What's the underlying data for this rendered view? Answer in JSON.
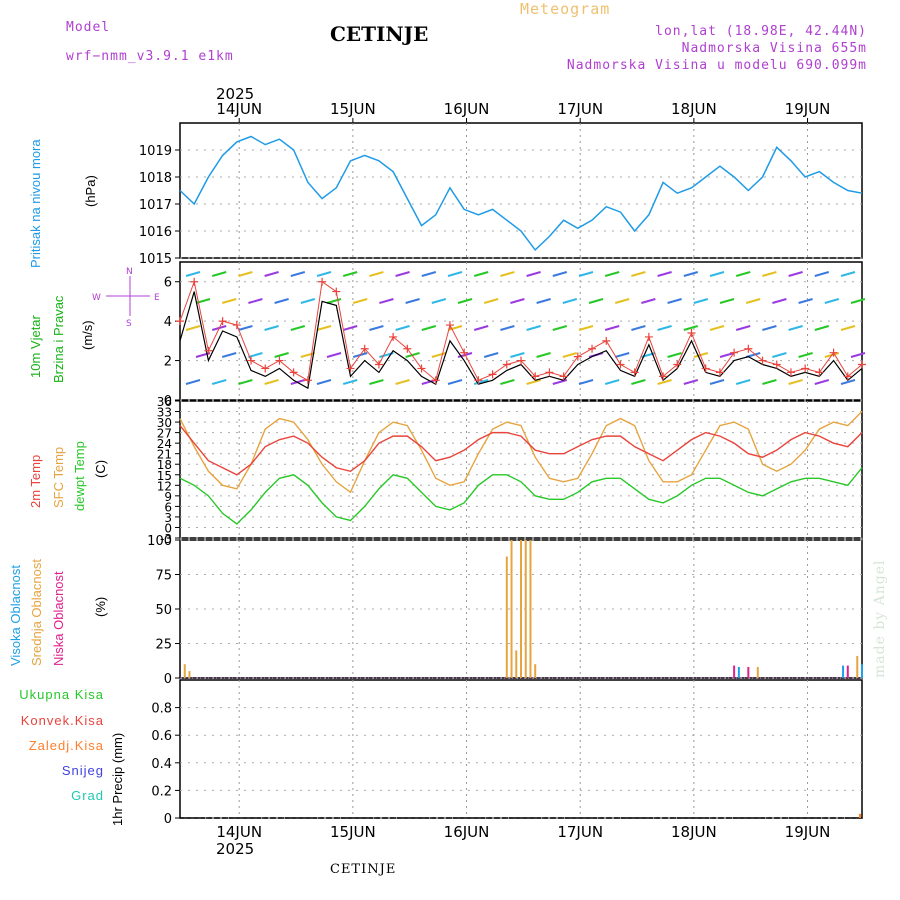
{
  "header": {
    "model_label": "Model",
    "model_name": "wrf−nmm_v3.9.1  e1km",
    "title": "CETINJE",
    "meteogram": "Meteogram",
    "lonlat": "lon,lat (18.98E, 42.44N)",
    "altitude": "Nadmorska Visina 655m",
    "model_altitude": "Nadmorska Visina u modelu 690.099m",
    "year_top": "2025",
    "year_bottom": "2025",
    "footer": "CETINJE",
    "watermark": "made by Angel"
  },
  "colors": {
    "pressure": "#1e9be6",
    "wind_label": "#17b317",
    "t2m": "#e8443c",
    "sfc": "#e6a440",
    "dew": "#28c828",
    "high_cloud": "#1ea0e6",
    "mid_cloud": "#e6a440",
    "low_cloud": "#e0208c",
    "total_precip": "#28c828",
    "conv_precip": "#e8443c",
    "frozen": "#ff7f2a",
    "snow": "#4040e0",
    "graupel": "#20c8b4",
    "purple": "#b040d0"
  },
  "chart_data": [
    {
      "type": "line",
      "panel": "pressure",
      "ylabel_lines": [
        "Pritisak na nivou mora",
        "(hPa)"
      ],
      "ylim": [
        1015,
        1020
      ],
      "yticks": [
        1015,
        1016,
        1017,
        1018,
        1019
      ],
      "xticks": [
        "14JUN",
        "15JUN",
        "16JUN",
        "17JUN",
        "18JUN",
        "19JUN"
      ],
      "x_hours": [
        0,
        3,
        6,
        9,
        12,
        15,
        18,
        21,
        24,
        27,
        30,
        33,
        36,
        39,
        42,
        45,
        48,
        51,
        54,
        57,
        60,
        63,
        66,
        69,
        72,
        75,
        78,
        81,
        84,
        87,
        90,
        93,
        96,
        99,
        102,
        105,
        108,
        111,
        114,
        117,
        120,
        123,
        126,
        129,
        132,
        135,
        138,
        141,
        144
      ],
      "series": [
        {
          "values": [
            1017.5,
            1017.0,
            1018.0,
            1018.8,
            1019.3,
            1019.5,
            1019.2,
            1019.4,
            1019.0,
            1017.8,
            1017.2,
            1017.6,
            1018.6,
            1018.8,
            1018.6,
            1018.2,
            1017.2,
            1016.2,
            1016.6,
            1017.6,
            1016.8,
            1016.6,
            1016.8,
            1016.4,
            1016.0,
            1015.3,
            1015.8,
            1016.4,
            1016.1,
            1016.4,
            1016.9,
            1016.7,
            1016.0,
            1016.6,
            1017.8,
            1017.4,
            1017.6,
            1018.0,
            1018.4,
            1018.0,
            1017.5,
            1018.0,
            1019.1,
            1018.6,
            1018.0,
            1018.2,
            1017.8,
            1017.5,
            1017.4
          ]
        }
      ]
    },
    {
      "type": "line",
      "panel": "wind",
      "ylabel_lines": [
        "10m Vjetar",
        "Brzina i Pravac",
        "(m/s)"
      ],
      "ylim": [
        0,
        7
      ],
      "yticks": [
        0,
        2,
        4,
        6
      ],
      "series": [
        {
          "name": "speed",
          "values": [
            3.0,
            5.5,
            2.0,
            3.5,
            3.2,
            1.5,
            1.2,
            1.6,
            1.0,
            0.6,
            5.0,
            4.8,
            1.2,
            2.0,
            1.4,
            2.5,
            2.0,
            1.2,
            0.8,
            3.0,
            2.0,
            0.8,
            1.0,
            1.5,
            1.8,
            1.0,
            1.2,
            1.0,
            1.8,
            2.2,
            2.5,
            1.5,
            1.2,
            2.8,
            1.0,
            1.6,
            3.0,
            1.4,
            1.2,
            2.0,
            2.2,
            1.8,
            1.6,
            1.2,
            1.4,
            1.2,
            2.0,
            1.0,
            1.6
          ]
        },
        {
          "name": "gust",
          "values": [
            4.0,
            6.0,
            2.5,
            4.0,
            3.8,
            2.0,
            1.6,
            2.0,
            1.4,
            1.0,
            6.0,
            5.5,
            1.6,
            2.6,
            1.8,
            3.2,
            2.6,
            1.6,
            1.0,
            3.8,
            2.4,
            1.0,
            1.3,
            1.8,
            2.0,
            1.2,
            1.4,
            1.2,
            2.2,
            2.6,
            3.0,
            1.8,
            1.4,
            3.2,
            1.2,
            1.8,
            3.4,
            1.6,
            1.4,
            2.4,
            2.6,
            2.0,
            1.8,
            1.4,
            1.6,
            1.4,
            2.4,
            1.2,
            1.8
          ]
        }
      ],
      "compass": {
        "w": "W",
        "e": "E",
        "n": "N",
        "s": "S"
      }
    },
    {
      "type": "line",
      "panel": "temperature",
      "ylabel_lines": [
        "2m Temp",
        "SFC Temp",
        "dewpt Temp",
        "(C)"
      ],
      "ylim": [
        -3,
        36
      ],
      "yticks": [
        -3,
        0,
        3,
        6,
        9,
        12,
        15,
        18,
        21,
        24,
        27,
        30,
        33,
        36
      ],
      "series": [
        {
          "name": "2m Temp",
          "values": [
            29,
            24,
            19,
            17,
            15,
            18,
            23,
            25,
            26,
            24,
            20,
            17,
            16,
            19,
            24,
            26,
            26,
            23,
            19,
            20,
            22,
            25,
            27,
            27,
            26,
            22,
            21,
            21,
            23,
            25,
            26,
            26,
            23,
            21,
            19,
            22,
            25,
            27,
            26,
            24,
            21,
            20,
            22,
            25,
            27,
            26,
            24,
            23,
            27
          ]
        },
        {
          "name": "SFC Temp",
          "values": [
            31,
            23,
            16,
            12,
            11,
            18,
            28,
            31,
            30,
            25,
            18,
            13,
            10,
            19,
            27,
            30,
            29,
            22,
            14,
            12,
            13,
            21,
            28,
            30,
            29,
            20,
            14,
            13,
            14,
            21,
            29,
            31,
            29,
            19,
            13,
            13,
            15,
            22,
            29,
            30,
            28,
            18,
            16,
            18,
            22,
            28,
            30,
            29,
            33
          ]
        },
        {
          "name": "dewpt Temp",
          "values": [
            14,
            12,
            9,
            4,
            1,
            5,
            10,
            14,
            15,
            12,
            7,
            3,
            2,
            6,
            11,
            15,
            14,
            10,
            6,
            5,
            7,
            12,
            15,
            15,
            13,
            9,
            8,
            8,
            10,
            13,
            14,
            14,
            11,
            8,
            7,
            9,
            12,
            14,
            14,
            12,
            10,
            9,
            11,
            13,
            14,
            14,
            13,
            12,
            17
          ]
        }
      ]
    },
    {
      "type": "bar",
      "panel": "cloud",
      "ylabel_lines": [
        "Visoka Oblacnost",
        "Srednja Oblacnost",
        "Niska Oblacnost",
        "(%)"
      ],
      "ylim": [
        0,
        100
      ],
      "yticks": [
        0,
        25,
        50,
        75,
        100
      ],
      "bars": [
        {
          "hour": 1,
          "value": 10,
          "series": "mid"
        },
        {
          "hour": 2,
          "value": 5,
          "series": "mid"
        },
        {
          "hour": 69,
          "value": 88,
          "series": "mid"
        },
        {
          "hour": 70,
          "value": 100,
          "series": "mid"
        },
        {
          "hour": 71,
          "value": 20,
          "series": "mid"
        },
        {
          "hour": 72,
          "value": 100,
          "series": "mid"
        },
        {
          "hour": 73,
          "value": 100,
          "series": "mid"
        },
        {
          "hour": 74,
          "value": 100,
          "series": "mid"
        },
        {
          "hour": 75,
          "value": 10,
          "series": "mid"
        },
        {
          "hour": 117,
          "value": 9,
          "series": "low"
        },
        {
          "hour": 118,
          "value": 8,
          "series": "high"
        },
        {
          "hour": 120,
          "value": 8,
          "series": "low"
        },
        {
          "hour": 122,
          "value": 8,
          "series": "mid"
        },
        {
          "hour": 140,
          "value": 9,
          "series": "high"
        },
        {
          "hour": 141,
          "value": 9,
          "series": "low"
        },
        {
          "hour": 143,
          "value": 16,
          "series": "mid"
        },
        {
          "hour": 144,
          "value": 10,
          "series": "high"
        }
      ]
    },
    {
      "type": "bar",
      "panel": "precip",
      "ylabel_lines": [
        "1hr Precip (mm)"
      ],
      "ylim": [
        0,
        1
      ],
      "yticks": [
        0,
        0.2,
        0.4,
        0.6,
        0.8
      ],
      "bars": [
        {
          "hour": 144,
          "value": 0.03,
          "series": "frozen"
        }
      ]
    }
  ],
  "legends": {
    "pressure": "Pritisak na nivou mora",
    "wind_1": "10m Vjetar",
    "wind_2": "Brzina i Pravac",
    "temp_1": "2m Temp",
    "temp_2": "SFC Temp",
    "temp_3": "dewpt Temp",
    "cloud_1": "Visoka Oblacnost",
    "cloud_2": "Srednja Oblacnost",
    "cloud_3": "Niska Oblacnost",
    "precip": [
      "Ukupna Kisa",
      "Konvek.Kisa",
      "Zaledj.Kisa",
      "Snijeg",
      "Grad"
    ]
  },
  "units": {
    "pressure": "(hPa)",
    "wind": "(m/s)",
    "temp": "(C)",
    "cloud": "(%)",
    "precip": "1hr Precip (mm)"
  }
}
